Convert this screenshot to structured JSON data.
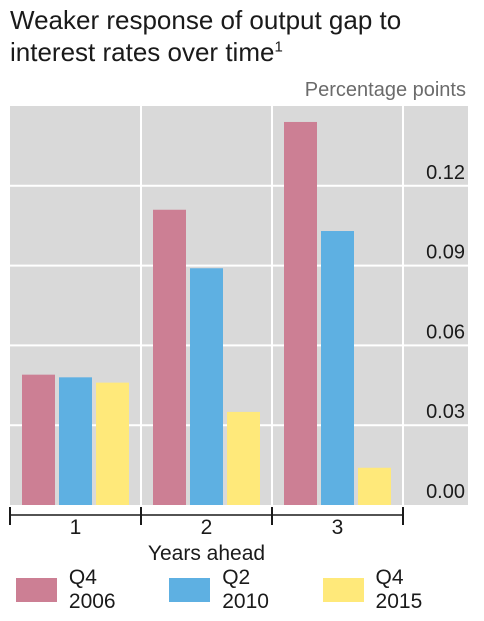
{
  "chart_data": {
    "type": "bar",
    "title": "Weaker response of output gap to interest rates over time",
    "title_footnote": "1",
    "unit_label": "Percentage points",
    "xlabel": "Years ahead",
    "ylabel": "",
    "categories": [
      "1",
      "2",
      "3"
    ],
    "series": [
      {
        "name": "Q4 2006",
        "color": "#cc7f94",
        "values": [
          0.049,
          0.111,
          0.144
        ]
      },
      {
        "name": "Q2 2010",
        "color": "#5eb0e2",
        "values": [
          0.048,
          0.089,
          0.103
        ]
      },
      {
        "name": "Q4 2015",
        "color": "#ffe97a",
        "values": [
          0.046,
          0.035,
          0.014
        ]
      }
    ],
    "yticks": [
      "0.00",
      "0.03",
      "0.06",
      "0.09",
      "0.12"
    ],
    "ylim": [
      0,
      0.15
    ],
    "y_axis_side": "right",
    "grid": true,
    "legend_position": "bottom",
    "plot_background": "#d9d9d9"
  }
}
